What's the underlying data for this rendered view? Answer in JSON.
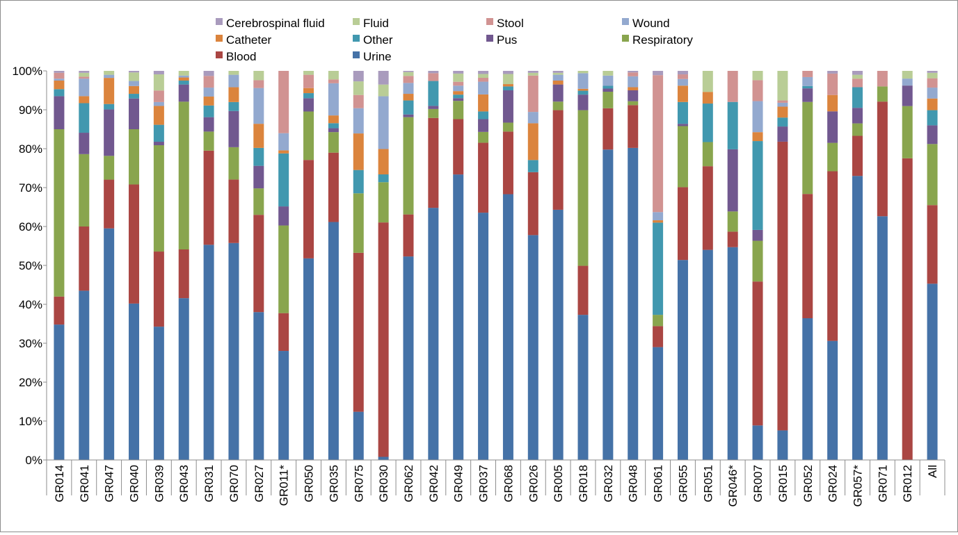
{
  "chart_data": {
    "type": "bar",
    "stacked": true,
    "percent": true,
    "legend_position": "top",
    "grid": false,
    "ylim": [
      0,
      100
    ],
    "yticks": [
      "0%",
      "10%",
      "20%",
      "30%",
      "40%",
      "50%",
      "60%",
      "70%",
      "80%",
      "90%",
      "100%"
    ],
    "categories": [
      "GR014",
      "GR041",
      "GR047",
      "GR040",
      "GR039",
      "GR043",
      "GR031",
      "GR070",
      "GR027",
      "GR011*",
      "GR050",
      "GR035",
      "GR075",
      "GR030",
      "GR062",
      "GR042",
      "GR049",
      "GR037",
      "GR068",
      "GR026",
      "GR005",
      "GR018",
      "GR032",
      "GR048",
      "GR061",
      "GR055",
      "GR051",
      "GR046*",
      "GR007",
      "GR015",
      "GR052",
      "GR024",
      "GR057*",
      "GR071",
      "GR012",
      "All"
    ],
    "legend_order": [
      "Cerebrospinal fluid",
      "Fluid",
      "Stool",
      "Wound",
      "Catheter",
      "Other",
      "Pus",
      "Respiratory",
      "Blood",
      "Urine"
    ],
    "series": [
      {
        "name": "Urine",
        "color": "#4572a7",
        "values": [
          34.8,
          43.5,
          59.4,
          40.2,
          34.6,
          41.5,
          55.3,
          55.7,
          38.0,
          28.0,
          51.6,
          61.4,
          12.4,
          0.8,
          52.3,
          64.8,
          73.3,
          64.0,
          68.3,
          57.5,
          64.3,
          37.3,
          78.9,
          80.2,
          29.0,
          51.4,
          54.0,
          54.8,
          8.9,
          7.6,
          36.5,
          30.6,
          73.0,
          62.7,
          0.0,
          45.3
        ]
      },
      {
        "name": "Blood",
        "color": "#aa4643",
        "values": [
          7.2,
          16.5,
          12.5,
          30.6,
          19.5,
          12.5,
          24.2,
          16.3,
          25.0,
          9.7,
          25.2,
          17.9,
          40.9,
          60.0,
          10.8,
          23.1,
          14.2,
          18.1,
          16.1,
          16.1,
          25.6,
          12.6,
          10.5,
          11.0,
          5.4,
          18.7,
          21.5,
          4.0,
          37.1,
          74.2,
          32.0,
          43.6,
          10.3,
          29.5,
          78.0,
          20.2
        ]
      },
      {
        "name": "Respiratory",
        "color": "#89a54e",
        "values": [
          43.0,
          18.6,
          6.1,
          14.2,
          27.6,
          37.9,
          4.9,
          8.3,
          6.8,
          22.5,
          12.4,
          5.3,
          15.3,
          10.3,
          25.0,
          2.3,
          4.7,
          2.8,
          2.3,
          0,
          2.2,
          40.0,
          4.2,
          1.0,
          2.9,
          15.7,
          6.2,
          5.2,
          10.5,
          0,
          23.7,
          7.3,
          3.2,
          3.9,
          13.5,
          15.7
        ]
      },
      {
        "name": "Pus",
        "color": "#71588f",
        "values": [
          8.5,
          5.5,
          11.9,
          7.9,
          0.9,
          4.4,
          3.7,
          9.3,
          5.8,
          4.9,
          3.4,
          1.0,
          0,
          0,
          0.7,
          0.8,
          0.7,
          3.3,
          8.3,
          0,
          4.4,
          4.0,
          0.8,
          2.8,
          0,
          0.6,
          0,
          16.0,
          2.8,
          3.9,
          3.5,
          8.1,
          4.0,
          0,
          5.3,
          4.8
        ]
      },
      {
        "name": "Other",
        "color": "#4198af",
        "values": [
          1.8,
          7.6,
          1.4,
          1.2,
          4.4,
          1.0,
          3.0,
          2.3,
          4.6,
          13.6,
          1.3,
          1.3,
          6.0,
          2.0,
          3.6,
          6.4,
          0.9,
          2.0,
          1.0,
          3.1,
          0,
          1.0,
          0.7,
          0,
          23.7,
          5.6,
          9.9,
          12.2,
          22.9,
          2.3,
          0.6,
          0,
          5.3,
          0,
          0,
          3.9
        ]
      },
      {
        "name": "Catheter",
        "color": "#db843d",
        "values": [
          2.2,
          1.8,
          6.7,
          2.0,
          4.9,
          0.8,
          2.3,
          3.8,
          6.2,
          0.8,
          1.3,
          2.0,
          9.4,
          6.5,
          1.7,
          0,
          0.9,
          4.4,
          0.6,
          9.4,
          1.0,
          0.5,
          0,
          0.8,
          0.6,
          4.2,
          3.0,
          0,
          2.3,
          2.8,
          0,
          4.2,
          0,
          0,
          0,
          3.0
        ]
      },
      {
        "name": "Wound",
        "color": "#93a9cf",
        "values": [
          0.5,
          4.5,
          0.8,
          1.3,
          1.0,
          0.5,
          2.3,
          3.2,
          9.2,
          4.4,
          0,
          8.3,
          6.5,
          13.5,
          2.8,
          0,
          1.4,
          3.3,
          0,
          2.9,
          1.5,
          4.0,
          2.6,
          2.8,
          2.1,
          1.7,
          0,
          0,
          8.0,
          1.0,
          2.3,
          0,
          0,
          0,
          1.8,
          2.8
        ]
      },
      {
        "name": "Stool",
        "color": "#d19392",
        "values": [
          1.5,
          0.5,
          0,
          0,
          3.0,
          0,
          3.0,
          0,
          2.0,
          16.0,
          3.4,
          1.0,
          3.4,
          0,
          1.8,
          2.0,
          1.0,
          1.0,
          0,
          9.3,
          0,
          0,
          0,
          1.0,
          35.2,
          1.2,
          0,
          8.0,
          5.4,
          0.6,
          1.6,
          5.5,
          2.2,
          4.0,
          0,
          2.4
        ]
      },
      {
        "name": "Fluid",
        "color": "#b9cd96",
        "values": [
          0,
          1.0,
          1.0,
          2.2,
          4.2,
          1.2,
          0,
          1.0,
          2.4,
          0,
          1.0,
          2.2,
          3.5,
          3.0,
          1.0,
          0,
          2.1,
          1.0,
          2.6,
          0.7,
          0.5,
          0.6,
          1.2,
          0,
          0,
          0,
          5.4,
          0,
          2.4,
          7.6,
          0,
          0,
          1.0,
          0,
          2.0,
          1.4
        ]
      },
      {
        "name": "Cerebrospinal fluid",
        "color": "#a99bbd",
        "values": [
          0.5,
          0.5,
          0,
          0.4,
          0.9,
          0,
          1.3,
          0,
          0,
          0,
          0,
          0,
          2.7,
          3.5,
          0.3,
          0.6,
          0.7,
          0.8,
          0.8,
          0.5,
          0.5,
          0,
          0,
          0.4,
          1.1,
          0.9,
          0,
          0,
          0,
          0,
          0,
          0.7,
          1.0,
          0,
          0,
          0.5
        ]
      }
    ]
  }
}
